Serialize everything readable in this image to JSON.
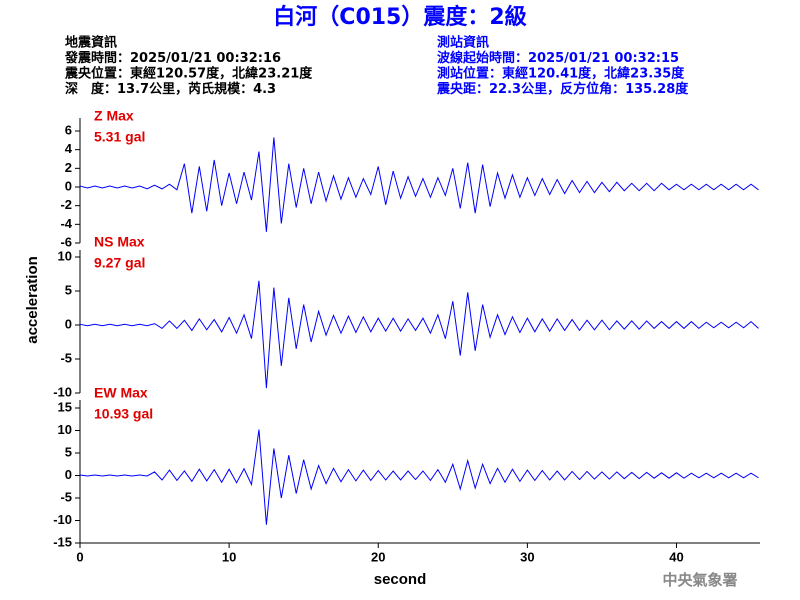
{
  "header": {
    "title": "白河（C015）震度：2級",
    "quake_info": [
      "地震資訊",
      "發震時間：2025/01/21 00:32:16",
      "震央位置：東經120.57度，北緯23.21度",
      "深　度：13.7公里，芮氏規模：4.3"
    ],
    "station_info": [
      "測站資訊",
      "波線起始時間：2025/01/21 00:32:15",
      "測站位置：東經120.41度，北緯23.35度",
      "震央距：22.3公里，反方位角：135.28度"
    ]
  },
  "footer": "中央氣象署",
  "chart_data": [
    {
      "type": "line",
      "label": "Z Max",
      "max_label": "5.31 gal",
      "xlim": [
        0,
        45.6
      ],
      "ylim": [
        -6,
        6
      ],
      "yticks": [
        -6,
        -4,
        -2,
        0,
        2,
        4,
        6
      ],
      "x": [
        0,
        0.5,
        1,
        1.5,
        2,
        2.5,
        3,
        3.5,
        4,
        4.5,
        5,
        5.5,
        6,
        6.5,
        7,
        7.5,
        8,
        8.5,
        9,
        9.5,
        10,
        10.5,
        11,
        11.5,
        12,
        12.5,
        13,
        13.5,
        14,
        14.5,
        15,
        15.5,
        16,
        16.5,
        17,
        17.5,
        18,
        18.5,
        19,
        19.5,
        20,
        20.5,
        21,
        21.5,
        22,
        22.5,
        23,
        23.5,
        24,
        24.5,
        25,
        25.5,
        26,
        26.5,
        27,
        27.5,
        28,
        28.5,
        29,
        29.5,
        30,
        30.5,
        31,
        31.5,
        32,
        32.5,
        33,
        33.5,
        34,
        34.5,
        35,
        35.5,
        36,
        36.5,
        37,
        37.5,
        38,
        38.5,
        39,
        39.5,
        40,
        40.5,
        41,
        41.5,
        42,
        42.5,
        43,
        43.5,
        44,
        44.5,
        45,
        45.5
      ],
      "series": [
        {
          "color": "#0000ff",
          "values": [
            0.1,
            -0.1,
            0.1,
            -0.1,
            0.1,
            -0.1,
            0.1,
            -0.1,
            0.1,
            -0.2,
            0.2,
            -0.2,
            0.3,
            -0.3,
            2.5,
            -2.8,
            2.2,
            -2.6,
            2.9,
            -2.0,
            1.5,
            -1.8,
            1.6,
            -1.4,
            3.8,
            -4.8,
            5.31,
            -3.9,
            2.5,
            -2.2,
            2.0,
            -1.8,
            1.6,
            -1.5,
            1.2,
            -1.3,
            1.0,
            -1.1,
            0.9,
            -0.8,
            2.2,
            -1.9,
            1.7,
            -1.2,
            1.1,
            -1.0,
            0.9,
            -1.1,
            1.0,
            -0.9,
            2.0,
            -2.3,
            2.6,
            -2.8,
            2.4,
            -2.1,
            1.5,
            -1.2,
            1.3,
            -1.1,
            1.0,
            -0.9,
            0.9,
            -0.8,
            0.8,
            -0.7,
            0.7,
            -0.6,
            0.6,
            -0.6,
            0.5,
            -0.5,
            0.5,
            -0.4,
            0.4,
            -0.4,
            0.4,
            -0.4,
            0.4,
            -0.3,
            0.3,
            -0.3,
            0.3,
            -0.3,
            0.3,
            -0.3,
            0.3,
            -0.3,
            0.3,
            -0.3,
            0.3,
            -0.3
          ]
        }
      ]
    },
    {
      "type": "line",
      "label": "NS Max",
      "max_label": "9.27 gal",
      "ylabel": "acceleration",
      "xlim": [
        0,
        45.6
      ],
      "ylim": [
        -10,
        10
      ],
      "yticks": [
        -10,
        -5,
        0,
        5,
        10
      ],
      "x": [
        0,
        0.5,
        1,
        1.5,
        2,
        2.5,
        3,
        3.5,
        4,
        4.5,
        5,
        5.5,
        6,
        6.5,
        7,
        7.5,
        8,
        8.5,
        9,
        9.5,
        10,
        10.5,
        11,
        11.5,
        12,
        12.5,
        13,
        13.5,
        14,
        14.5,
        15,
        15.5,
        16,
        16.5,
        17,
        17.5,
        18,
        18.5,
        19,
        19.5,
        20,
        20.5,
        21,
        21.5,
        22,
        22.5,
        23,
        23.5,
        24,
        24.5,
        25,
        25.5,
        26,
        26.5,
        27,
        27.5,
        28,
        28.5,
        29,
        29.5,
        30,
        30.5,
        31,
        31.5,
        32,
        32.5,
        33,
        33.5,
        34,
        34.5,
        35,
        35.5,
        36,
        36.5,
        37,
        37.5,
        38,
        38.5,
        39,
        39.5,
        40,
        40.5,
        41,
        41.5,
        42,
        42.5,
        43,
        43.5,
        44,
        44.5,
        45,
        45.5
      ],
      "series": [
        {
          "color": "#0000ff",
          "values": [
            0.1,
            -0.1,
            0.1,
            -0.1,
            0.1,
            -0.1,
            0.1,
            -0.1,
            0.1,
            -0.1,
            0.2,
            -0.5,
            0.6,
            -0.5,
            0.7,
            -0.8,
            0.9,
            -0.7,
            0.8,
            -1.0,
            1.1,
            -1.2,
            1.5,
            -2.0,
            6.5,
            -9.27,
            5.5,
            -6.0,
            4.0,
            -3.5,
            3.0,
            -2.5,
            2.0,
            -1.5,
            1.4,
            -1.2,
            1.3,
            -1.1,
            1.2,
            -1.0,
            1.0,
            -0.9,
            1.0,
            -0.9,
            0.9,
            -0.8,
            1.0,
            -1.2,
            1.5,
            -2.0,
            3.5,
            -4.5,
            4.8,
            -3.8,
            3.0,
            -1.8,
            1.5,
            -1.4,
            1.2,
            -1.1,
            1.0,
            -1.0,
            0.9,
            -0.9,
            0.9,
            -0.8,
            0.8,
            -0.8,
            0.7,
            -0.7,
            0.7,
            -0.7,
            0.6,
            -0.6,
            0.6,
            -0.6,
            0.6,
            -0.5,
            0.5,
            -0.5,
            0.5,
            -0.5,
            0.5,
            -0.5,
            0.4,
            -0.4,
            0.4,
            -0.4,
            0.4,
            -0.4,
            0.5,
            -0.5
          ]
        }
      ]
    },
    {
      "type": "line",
      "label": "EW Max",
      "max_label": "10.93 gal",
      "xlabel": "second",
      "xlim": [
        0,
        45.6
      ],
      "ylim": [
        -15,
        15
      ],
      "yticks": [
        -15,
        -10,
        -5,
        0,
        5,
        10,
        15
      ],
      "xticks": [
        0,
        10,
        20,
        30,
        40
      ],
      "x": [
        0,
        0.5,
        1,
        1.5,
        2,
        2.5,
        3,
        3.5,
        4,
        4.5,
        5,
        5.5,
        6,
        6.5,
        7,
        7.5,
        8,
        8.5,
        9,
        9.5,
        10,
        10.5,
        11,
        11.5,
        12,
        12.5,
        13,
        13.5,
        14,
        14.5,
        15,
        15.5,
        16,
        16.5,
        17,
        17.5,
        18,
        18.5,
        19,
        19.5,
        20,
        20.5,
        21,
        21.5,
        22,
        22.5,
        23,
        23.5,
        24,
        24.5,
        25,
        25.5,
        26,
        26.5,
        27,
        27.5,
        28,
        28.5,
        29,
        29.5,
        30,
        30.5,
        31,
        31.5,
        32,
        32.5,
        33,
        33.5,
        34,
        34.5,
        35,
        35.5,
        36,
        36.5,
        37,
        37.5,
        38,
        38.5,
        39,
        39.5,
        40,
        40.5,
        41,
        41.5,
        42,
        42.5,
        43,
        43.5,
        44,
        44.5,
        45,
        45.5
      ],
      "series": [
        {
          "color": "#0000ff",
          "values": [
            0.1,
            -0.1,
            0.1,
            -0.1,
            0.1,
            -0.1,
            0.1,
            -0.1,
            0.1,
            -0.1,
            0.8,
            -1.0,
            1.2,
            -1.1,
            1.0,
            -1.3,
            1.4,
            -1.2,
            1.3,
            -1.5,
            1.4,
            -1.6,
            1.5,
            -2.0,
            10.2,
            -10.93,
            6.0,
            -5.0,
            4.5,
            -4.0,
            3.5,
            -3.0,
            2.2,
            -1.8,
            1.6,
            -1.4,
            1.3,
            -1.2,
            1.2,
            -1.1,
            1.1,
            -1.0,
            1.0,
            -1.0,
            1.0,
            -0.9,
            1.0,
            -1.1,
            1.3,
            -1.5,
            2.5,
            -3.0,
            3.3,
            -2.8,
            2.5,
            -1.8,
            1.6,
            -1.5,
            1.4,
            -1.3,
            1.2,
            -1.1,
            1.1,
            -1.0,
            1.0,
            -1.0,
            0.9,
            -0.9,
            0.9,
            -0.8,
            0.8,
            -0.8,
            0.8,
            -0.7,
            0.7,
            -0.7,
            0.7,
            -0.6,
            0.6,
            -0.6,
            0.6,
            -0.6,
            0.5,
            -0.5,
            0.5,
            -0.5,
            0.5,
            -0.5,
            0.5,
            -0.5,
            0.5,
            -0.5
          ]
        }
      ]
    }
  ]
}
